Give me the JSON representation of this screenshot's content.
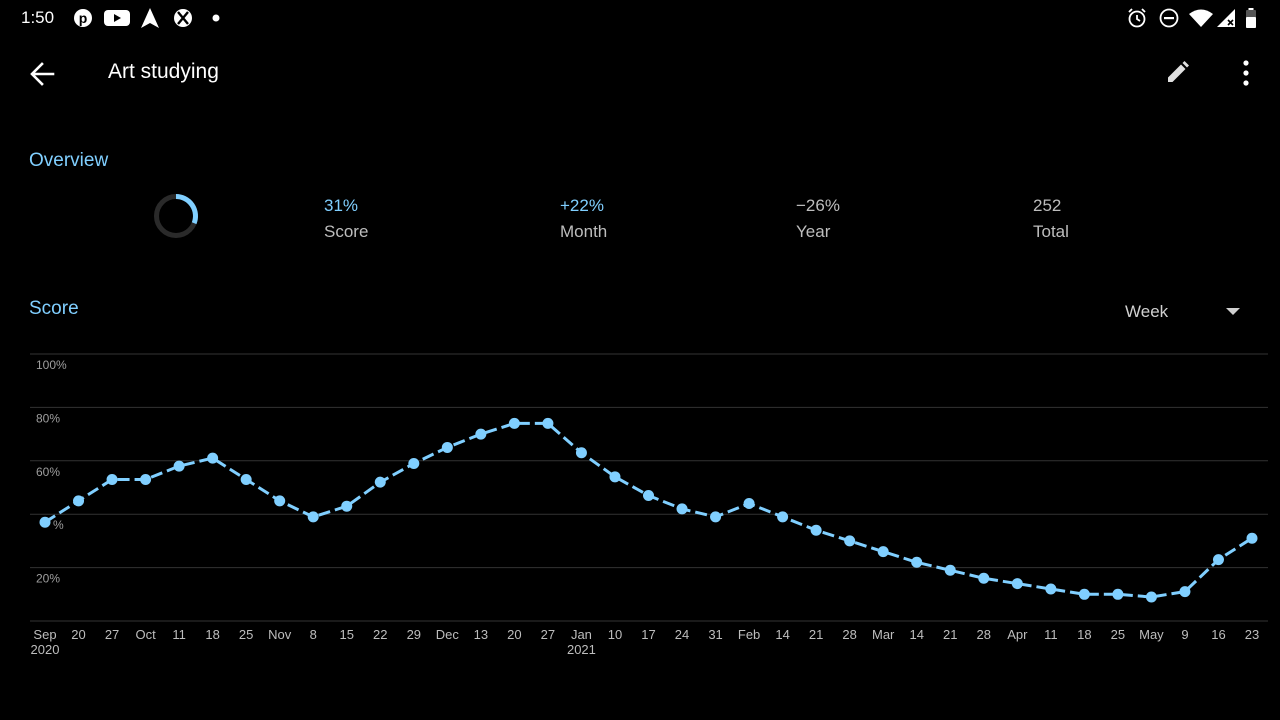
{
  "status_bar": {
    "time": "1:50",
    "left_icons": [
      "pinterest-icon",
      "youtube-icon",
      "navigation-arrow-icon",
      "xbox-icon",
      "dot-icon"
    ],
    "right_icons": [
      "alarm-icon",
      "do-not-disturb-icon",
      "wifi-icon",
      "cell-signal-icon",
      "battery-icon"
    ]
  },
  "app_bar": {
    "title": "Art studying",
    "back_icon": "arrow-back-icon",
    "edit_icon": "pencil-icon",
    "more_icon": "more-vert-icon"
  },
  "overview": {
    "title": "Overview",
    "ring_fraction": 0.31,
    "stats": [
      {
        "value": "31%",
        "label": "Score",
        "color": "#80cfff"
      },
      {
        "value": "+22%",
        "label": "Month",
        "color": "#80cfff"
      },
      {
        "value": "−26%",
        "label": "Year",
        "color": "#bdbdbd"
      },
      {
        "value": "252",
        "label": "Total",
        "color": "#bdbdbd"
      }
    ]
  },
  "score": {
    "title": "Score",
    "period": "Week"
  },
  "colors": {
    "accent": "#80cfff",
    "muted": "#bdbdbd",
    "grid": "#333333",
    "background": "#000000"
  },
  "chart_data": {
    "type": "line",
    "title": "",
    "xlabel": "",
    "ylabel": "",
    "ylim": [
      0,
      100
    ],
    "y_ticks": [
      "100%",
      "80%",
      "60%",
      "%",
      "20%"
    ],
    "y_tick_values": [
      100,
      80,
      60,
      40,
      20
    ],
    "x_ticks": [
      {
        "label": "Sep",
        "sub": "2020"
      },
      {
        "label": "20"
      },
      {
        "label": "27"
      },
      {
        "label": "Oct"
      },
      {
        "label": "11"
      },
      {
        "label": "18"
      },
      {
        "label": "25"
      },
      {
        "label": "Nov"
      },
      {
        "label": "8"
      },
      {
        "label": "15"
      },
      {
        "label": "22"
      },
      {
        "label": "29"
      },
      {
        "label": "Dec"
      },
      {
        "label": "13"
      },
      {
        "label": "20"
      },
      {
        "label": "27"
      },
      {
        "label": "Jan",
        "sub": "2021"
      },
      {
        "label": "10"
      },
      {
        "label": "17"
      },
      {
        "label": "24"
      },
      {
        "label": "31"
      },
      {
        "label": "Feb"
      },
      {
        "label": "14"
      },
      {
        "label": "21"
      },
      {
        "label": "28"
      },
      {
        "label": "Mar"
      },
      {
        "label": "14"
      },
      {
        "label": "21"
      },
      {
        "label": "28"
      },
      {
        "label": "Apr"
      },
      {
        "label": "11"
      },
      {
        "label": "18"
      },
      {
        "label": "25"
      },
      {
        "label": "May"
      },
      {
        "label": "9"
      },
      {
        "label": "16"
      },
      {
        "label": "23"
      }
    ],
    "series": [
      {
        "values": [
          37,
          45,
          53,
          53,
          58,
          61,
          53,
          45,
          39,
          43,
          52,
          59,
          65,
          70,
          74,
          74,
          63,
          54,
          47,
          42,
          39,
          44,
          39,
          34,
          30,
          26,
          22,
          19,
          16,
          14,
          12,
          10,
          10,
          9,
          11,
          23,
          31
        ]
      }
    ]
  }
}
